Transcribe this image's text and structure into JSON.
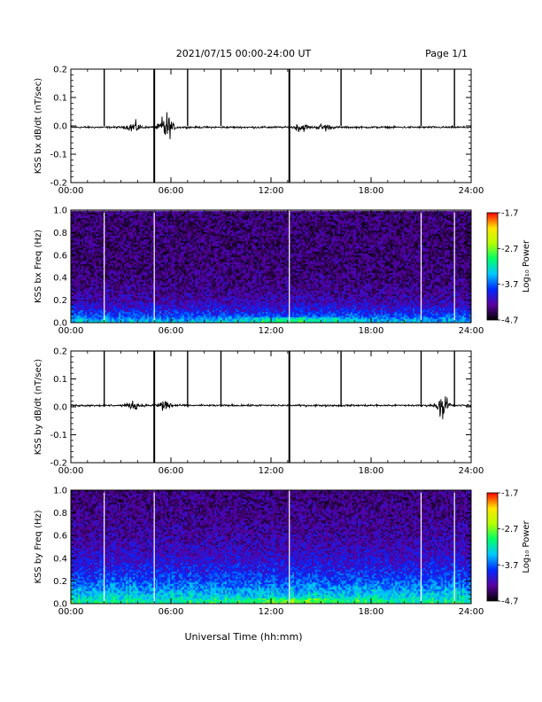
{
  "header": {
    "title": "2021/07/15  00:00-24:00 UT",
    "page": "Page 1/1"
  },
  "x_axis_label": "Universal Time (hh:mm)",
  "colors": {
    "trace": "#000000",
    "spike": "#000000",
    "gap_line": "#ffffff",
    "colormap": [
      "#000000",
      "#5a00a0",
      "#0028ff",
      "#00c8ff",
      "#00ff66",
      "#b4ff00",
      "#ffe600",
      "#ff0000"
    ]
  },
  "chart_data": [
    {
      "type": "line",
      "title": "",
      "xlabel": "",
      "ylabel": "KSS bx dB/dt (nT/sec)",
      "xlim": [
        0,
        24
      ],
      "ylim": [
        -0.2,
        0.2
      ],
      "xticks": [
        "00:00",
        "06:00",
        "12:00",
        "18:00",
        "24:00"
      ],
      "yticks": [
        "-0.2",
        "-0.1",
        "0.0",
        "0.1",
        "0.2"
      ],
      "baseline": -0.005,
      "noise_bursts": [
        {
          "hour": 3.8,
          "amplitude": 0.015
        },
        {
          "hour": 5.7,
          "amplitude": 0.04
        },
        {
          "hour": 13.8,
          "amplitude": 0.012
        },
        {
          "hour": 15.2,
          "amplitude": 0.01
        }
      ],
      "spikes": [
        {
          "hour": 2.0,
          "ymin": 0.0,
          "ymax": 0.2
        },
        {
          "hour": 5.0,
          "ymin": -0.2,
          "ymax": 0.2
        },
        {
          "hour": 7.0,
          "ymin": 0.0,
          "ymax": 0.2
        },
        {
          "hour": 9.0,
          "ymin": 0.0,
          "ymax": 0.2
        },
        {
          "hour": 13.1,
          "ymin": -0.2,
          "ymax": 0.2
        },
        {
          "hour": 16.2,
          "ymin": 0.0,
          "ymax": 0.2
        },
        {
          "hour": 21.0,
          "ymin": 0.0,
          "ymax": 0.2
        },
        {
          "hour": 23.0,
          "ymin": 0.0,
          "ymax": 0.2
        }
      ]
    },
    {
      "type": "heatmap",
      "title": "",
      "xlabel": "",
      "ylabel": "KSS bx Freq (Hz)",
      "xlim": [
        0,
        24
      ],
      "ylim": [
        0.0,
        1.0
      ],
      "xticks": [
        "00:00",
        "06:00",
        "12:00",
        "18:00",
        "24:00"
      ],
      "yticks": [
        "0.0",
        "0.2",
        "0.4",
        "0.6",
        "0.8",
        "1.0"
      ],
      "colorbar": {
        "label": "Log₁₀ Power",
        "min": -4.7,
        "max": -1.7,
        "ticks": [
          "-1.7",
          "-2.7",
          "-3.7",
          "-4.7"
        ]
      },
      "gap_hours": [
        2.0,
        5.0,
        13.1,
        21.0,
        23.0
      ],
      "low_freq_level": -3.6,
      "background_level": -4.4
    },
    {
      "type": "line",
      "title": "",
      "xlabel": "",
      "ylabel": "KSS by dB/dt (nT/sec)",
      "xlim": [
        0,
        24
      ],
      "ylim": [
        -0.2,
        0.2
      ],
      "xticks": [
        "00:00",
        "06:00",
        "12:00",
        "18:00",
        "24:00"
      ],
      "yticks": [
        "-0.2",
        "-0.1",
        "0.0",
        "0.1",
        "0.2"
      ],
      "baseline": 0.005,
      "noise_bursts": [
        {
          "hour": 3.8,
          "amplitude": 0.01
        },
        {
          "hour": 5.6,
          "amplitude": 0.02
        },
        {
          "hour": 22.3,
          "amplitude": 0.03
        }
      ],
      "spikes": [
        {
          "hour": 2.0,
          "ymin": 0.0,
          "ymax": 0.2
        },
        {
          "hour": 5.0,
          "ymin": -0.2,
          "ymax": 0.2
        },
        {
          "hour": 7.0,
          "ymin": 0.0,
          "ymax": 0.2
        },
        {
          "hour": 9.0,
          "ymin": 0.0,
          "ymax": 0.2
        },
        {
          "hour": 13.1,
          "ymin": -0.2,
          "ymax": 0.2
        },
        {
          "hour": 16.2,
          "ymin": 0.0,
          "ymax": 0.2
        },
        {
          "hour": 21.0,
          "ymin": 0.0,
          "ymax": 0.2
        },
        {
          "hour": 23.0,
          "ymin": 0.0,
          "ymax": 0.2
        }
      ]
    },
    {
      "type": "heatmap",
      "title": "",
      "xlabel": "",
      "ylabel": "KSS by Freq (Hz)",
      "xlim": [
        0,
        24
      ],
      "ylim": [
        0.0,
        1.0
      ],
      "xticks": [
        "00:00",
        "06:00",
        "12:00",
        "18:00",
        "24:00"
      ],
      "yticks": [
        "0.0",
        "0.2",
        "0.4",
        "0.6",
        "0.8",
        "1.0"
      ],
      "colorbar": {
        "label": "Log₁₀ Power",
        "min": -4.7,
        "max": -1.7,
        "ticks": [
          "-1.7",
          "-2.7",
          "-3.7",
          "-4.7"
        ]
      },
      "gap_hours": [
        2.0,
        5.0,
        13.1,
        21.0,
        23.0
      ],
      "low_freq_level": -3.4,
      "background_level": -4.4
    }
  ]
}
